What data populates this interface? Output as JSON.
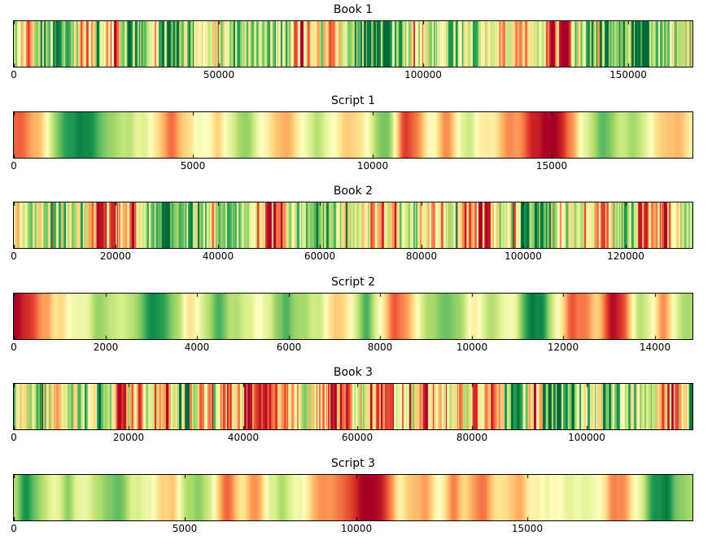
{
  "figure": {
    "background": "#ffffff",
    "axes_border_color": "#000000",
    "tick_color": "#000000",
    "text_color": "#000000"
  },
  "chart_data": [
    {
      "name": "book-1",
      "title": "Book 1",
      "type": "heatmap",
      "colormap": "RdYlGn",
      "value_range": [
        -1,
        1
      ],
      "x_ticks": [
        0,
        50000,
        100000,
        150000
      ],
      "x_max": 165500,
      "texture": "fine",
      "noise_amp": 0.55,
      "seed": 11,
      "pattern": [
        0.25,
        -0.45,
        0.5,
        0.85,
        0.6,
        -0.4,
        0.3,
        -0.5,
        0.45,
        0.7,
        0.35,
        0.6,
        0.8,
        0.2,
        0.05,
        0.1,
        0.5,
        0.65,
        0.3,
        0.45,
        0.2,
        -0.5,
        0.2,
        -0.35,
        0.3,
        0.5,
        0.85,
        0.6,
        0.7,
        -0.55,
        0.35,
        0.7,
        0.45,
        0.3,
        0.1,
        -0.3,
        -0.15,
        -0.4,
        0.05,
        -0.9,
        -0.75,
        0.3,
        0.55,
        0.7,
        0.5,
        0.9,
        0.55,
        0.2,
        0.1,
        0.3
      ]
    },
    {
      "name": "script-1",
      "title": "Script 1",
      "type": "heatmap",
      "colormap": "RdYlGn",
      "value_range": [
        -1,
        1
      ],
      "x_ticks": [
        0,
        5000,
        10000,
        15000
      ],
      "x_max": 18900,
      "texture": "smooth",
      "noise_amp": 0.14,
      "seed": 22,
      "pattern": [
        -0.55,
        -0.6,
        -0.1,
        0.5,
        0.9,
        0.95,
        0.7,
        0.45,
        0.3,
        0.15,
        -0.2,
        -0.65,
        -0.15,
        0.1,
        -0.3,
        0.2,
        0.45,
        0.1,
        -0.2,
        -0.45,
        0.0,
        0.3,
        0.15,
        -0.35,
        -0.2,
        0.4,
        0.55,
        -0.8,
        -0.6,
        0.05,
        -0.55,
        0.3,
        0.05,
        -0.1,
        -0.35,
        -0.5,
        -0.75,
        -1.0,
        -0.95,
        -0.3,
        0.45,
        0.55,
        0.15,
        0.35,
        0.0,
        -0.35,
        -0.45,
        -0.05
      ]
    },
    {
      "name": "book-2",
      "title": "Book 2",
      "type": "heatmap",
      "colormap": "RdYlGn",
      "value_range": [
        -1,
        1
      ],
      "x_ticks": [
        0,
        20000,
        40000,
        60000,
        80000,
        100000,
        120000
      ],
      "x_max": 133000,
      "texture": "fine",
      "noise_amp": 0.55,
      "seed": 33,
      "pattern": [
        -0.4,
        0.25,
        0.15,
        0.35,
        0.05,
        0.3,
        -0.5,
        -0.8,
        -0.4,
        -0.65,
        0.3,
        0.6,
        0.75,
        0.4,
        0.7,
        -0.2,
        0.5,
        0.2,
        -0.1,
        -0.5,
        -0.7,
        0.2,
        0.45,
        0.75,
        0.5,
        0.1,
        0.3,
        -0.35,
        -0.6,
        0.2,
        0.5,
        -0.35,
        -0.25,
        0.1,
        -0.5,
        -0.45,
        -0.7,
        0.1,
        0.35,
        0.9,
        0.6,
        -0.2,
        0.3,
        -0.3,
        -0.45,
        -0.3,
        0.7,
        -0.5,
        -0.55,
        -0.85,
        0.1,
        0.4
      ]
    },
    {
      "name": "script-2",
      "title": "Script 2",
      "type": "heatmap",
      "colormap": "RdYlGn",
      "value_range": [
        -1,
        1
      ],
      "x_ticks": [
        0,
        2000,
        4000,
        6000,
        8000,
        10000,
        12000,
        14000
      ],
      "x_max": 14800,
      "texture": "smooth",
      "noise_amp": 0.14,
      "seed": 44,
      "pattern": [
        -0.9,
        -0.85,
        -0.5,
        -0.25,
        0.0,
        0.15,
        0.3,
        0.35,
        0.3,
        0.4,
        0.75,
        0.8,
        0.4,
        -0.15,
        0.3,
        0.6,
        0.35,
        0.3,
        0.0,
        0.3,
        0.65,
        0.45,
        0.35,
        0.1,
        -0.4,
        0.2,
        0.7,
        0.0,
        -0.8,
        -0.45,
        0.3,
        0.5,
        0.55,
        0.4,
        -0.25,
        0.3,
        0.2,
        0.15,
        0.85,
        0.9,
        0.0,
        -0.6,
        -0.65,
        -0.1,
        -0.9,
        -0.85,
        0.4,
        0.1,
        -0.65,
        0.3,
        0.5
      ]
    },
    {
      "name": "book-3",
      "title": "Book 3",
      "type": "heatmap",
      "colormap": "RdYlGn",
      "value_range": [
        -1,
        1
      ],
      "x_ticks": [
        0,
        20000,
        40000,
        60000,
        80000,
        100000
      ],
      "x_max": 118300,
      "texture": "fine",
      "noise_amp": 0.55,
      "seed": 55,
      "pattern": [
        0.3,
        0.2,
        0.75,
        -0.2,
        0.1,
        0.4,
        0.25,
        0.5,
        -0.65,
        -0.55,
        0.0,
        -0.25,
        -0.1,
        0.55,
        -0.15,
        -0.35,
        -0.5,
        -0.2,
        -0.8,
        -0.75,
        -0.5,
        -0.45,
        0.2,
        -0.3,
        -0.7,
        -0.6,
        0.1,
        -0.6,
        -0.75,
        -0.3,
        0.0,
        -0.7,
        -0.1,
        -0.2,
        -0.15,
        -0.4,
        -0.5,
        0.3,
        0.8,
        -0.4,
        0.75,
        0.5,
        0.7,
        0.35,
        0.2,
        0.5,
        0.3,
        0.15,
        0.1,
        -0.65,
        -0.45,
        0.7
      ]
    },
    {
      "name": "script-3",
      "title": "Script 3",
      "type": "heatmap",
      "colormap": "RdYlGn",
      "value_range": [
        -1,
        1
      ],
      "x_ticks": [
        0,
        5000,
        10000,
        15000
      ],
      "x_max": 19800,
      "texture": "smooth",
      "noise_amp": 0.14,
      "seed": 66,
      "pattern": [
        0.35,
        0.85,
        0.5,
        -0.05,
        0.5,
        0.0,
        0.3,
        0.6,
        0.45,
        0.2,
        0.1,
        -0.2,
        -0.4,
        0.35,
        0.5,
        0.0,
        -0.6,
        -0.1,
        -0.6,
        0.0,
        0.4,
        0.2,
        0.05,
        -0.5,
        -0.4,
        -0.7,
        -0.85,
        -0.9,
        -0.85,
        -0.1,
        -0.3,
        -0.6,
        0.0,
        -0.6,
        -0.3,
        -0.6,
        -0.25,
        -0.1,
        -0.55,
        0.0,
        0.05,
        0.0,
        0.15,
        0.2,
        0.0,
        -0.55,
        -0.4,
        0.0,
        0.8,
        0.9,
        0.55,
        0.5
      ]
    }
  ]
}
